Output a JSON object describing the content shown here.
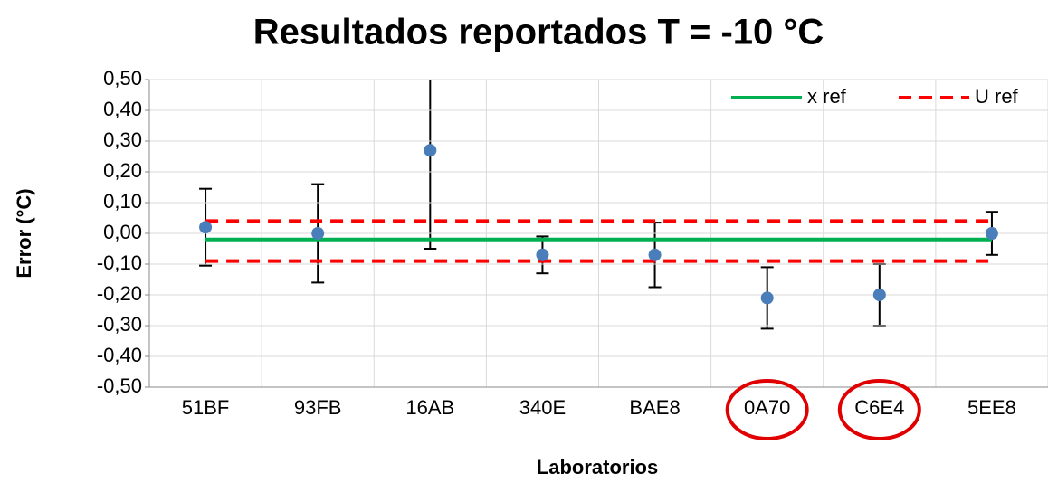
{
  "chart_data": {
    "type": "errorbar",
    "title": "Resultados reportados  T = -10 °C",
    "x_label": "Laboratorios",
    "y_label": "Error (°C)",
    "categories": [
      "51BF",
      "93FB",
      "16AB",
      "340E",
      "BAE8",
      "0A70",
      "C6E4",
      "5EE8"
    ],
    "values": [
      0.02,
      0.0,
      0.27,
      -0.07,
      -0.07,
      -0.21,
      -0.2,
      0.0
    ],
    "errors": [
      0.125,
      0.16,
      0.32,
      0.06,
      0.105,
      0.1,
      0.1,
      0.07
    ],
    "color": "#4a7ebb",
    "error_color": "#000000",
    "reference_lines": [
      {
        "name": "x ref",
        "color": "#00b050",
        "style": "solid",
        "values": [
          -0.02
        ]
      },
      {
        "name": "U ref",
        "color": "#ff0000",
        "style": "dashed",
        "values": [
          0.04,
          -0.09
        ]
      }
    ],
    "highlight": [
      5,
      6
    ],
    "highlight_color": "#e00000",
    "ylim": [
      -0.5,
      0.5
    ],
    "yticks": [
      {
        "value": -0.5,
        "label": "-0,50"
      },
      {
        "value": -0.4,
        "label": "-0,40"
      },
      {
        "value": -0.3,
        "label": "-0,30"
      },
      {
        "value": -0.2,
        "label": "-0,20"
      },
      {
        "value": -0.1,
        "label": "-0,10"
      },
      {
        "value": 0,
        "label": "0,00"
      },
      {
        "value": 0.1,
        "label": "0,10"
      },
      {
        "value": 0.2,
        "label": "0,20"
      },
      {
        "value": 0.3,
        "label": "0,30"
      },
      {
        "value": 0.4,
        "label": "0,40"
      },
      {
        "value": 0.5,
        "label": "0,50"
      }
    ],
    "grid": true,
    "legend": "top-right"
  }
}
